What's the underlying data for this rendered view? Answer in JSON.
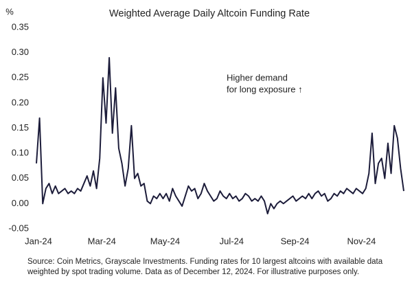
{
  "chart_data": {
    "type": "line",
    "title": "Weighted Average Daily Altcoin Funding Rate",
    "y_label": "%",
    "annotation": [
      "Higher demand",
      "for long exposure ↑"
    ],
    "source": [
      "Source: Coin Metrics, Grayscale Investments. Funding rates for 10 largest altcoins with available data",
      "weighted by spot trading volume. Data as of December 12, 2024. For illustrative purposes only."
    ],
    "categories": [
      "Jan-24",
      null,
      null,
      null,
      null,
      null,
      null,
      null,
      null,
      null,
      null,
      null,
      null,
      null,
      null,
      null,
      null,
      null,
      null,
      null,
      "Mar-24",
      null,
      null,
      null,
      null,
      null,
      null,
      null,
      null,
      null,
      null,
      null,
      null,
      null,
      null,
      null,
      null,
      null,
      null,
      null,
      "May-24",
      null,
      null,
      null,
      null,
      null,
      null,
      null,
      null,
      null,
      null,
      null,
      null,
      null,
      null,
      null,
      null,
      null,
      null,
      null,
      null,
      "Jul-24",
      null,
      null,
      null,
      null,
      null,
      null,
      null,
      null,
      null,
      null,
      null,
      null,
      null,
      null,
      null,
      null,
      null,
      null,
      null,
      "Sep-24",
      null,
      null,
      null,
      null,
      null,
      null,
      null,
      null,
      null,
      null,
      null,
      null,
      null,
      null,
      null,
      null,
      null,
      null,
      null,
      null,
      "Nov-24",
      null,
      null,
      null,
      null,
      null,
      null,
      null,
      null,
      null,
      null,
      null,
      null,
      null,
      null
    ],
    "series": [
      {
        "name": "Funding rate",
        "color": "#1c1c3a",
        "values": [
          0.08,
          0.17,
          0.0,
          0.03,
          0.04,
          0.02,
          0.035,
          0.02,
          0.025,
          0.03,
          0.02,
          0.025,
          0.02,
          0.03,
          0.025,
          0.04,
          0.055,
          0.035,
          0.065,
          0.03,
          0.09,
          0.25,
          0.16,
          0.29,
          0.14,
          0.23,
          0.11,
          0.08,
          0.035,
          0.07,
          0.155,
          0.05,
          0.06,
          0.035,
          0.04,
          0.005,
          0.0,
          0.015,
          0.01,
          0.02,
          0.01,
          0.02,
          0.005,
          0.03,
          0.015,
          0.005,
          -0.005,
          0.015,
          0.035,
          0.025,
          0.03,
          0.01,
          0.02,
          0.04,
          0.025,
          0.015,
          0.005,
          0.01,
          0.025,
          0.015,
          0.01,
          0.02,
          0.01,
          0.015,
          0.005,
          0.01,
          0.02,
          0.015,
          0.005,
          0.01,
          0.005,
          0.015,
          0.005,
          -0.02,
          0.0,
          -0.01,
          0.0,
          0.005,
          0.0,
          0.005,
          0.01,
          0.015,
          0.005,
          0.01,
          0.015,
          0.01,
          0.02,
          0.01,
          0.02,
          0.025,
          0.015,
          0.02,
          0.005,
          0.01,
          0.02,
          0.015,
          0.025,
          0.02,
          0.03,
          0.025,
          0.02,
          0.03,
          0.025,
          0.02,
          0.03,
          0.06,
          0.14,
          0.04,
          0.08,
          0.09,
          0.05,
          0.12,
          0.06,
          0.155,
          0.13,
          0.07,
          0.025
        ]
      }
    ],
    "ylim": [
      -0.05,
      0.35
    ],
    "yticks": [
      -0.05,
      {
        "value": 0,
        "label": "0.00"
      },
      0.05,
      {
        "value": 0.1,
        "label": "0.10"
      },
      0.15,
      {
        "value": 0.2,
        "label": "0.20"
      },
      0.25,
      {
        "value": 0.3,
        "label": "0.30"
      },
      0.35
    ],
    "grid": false
  }
}
